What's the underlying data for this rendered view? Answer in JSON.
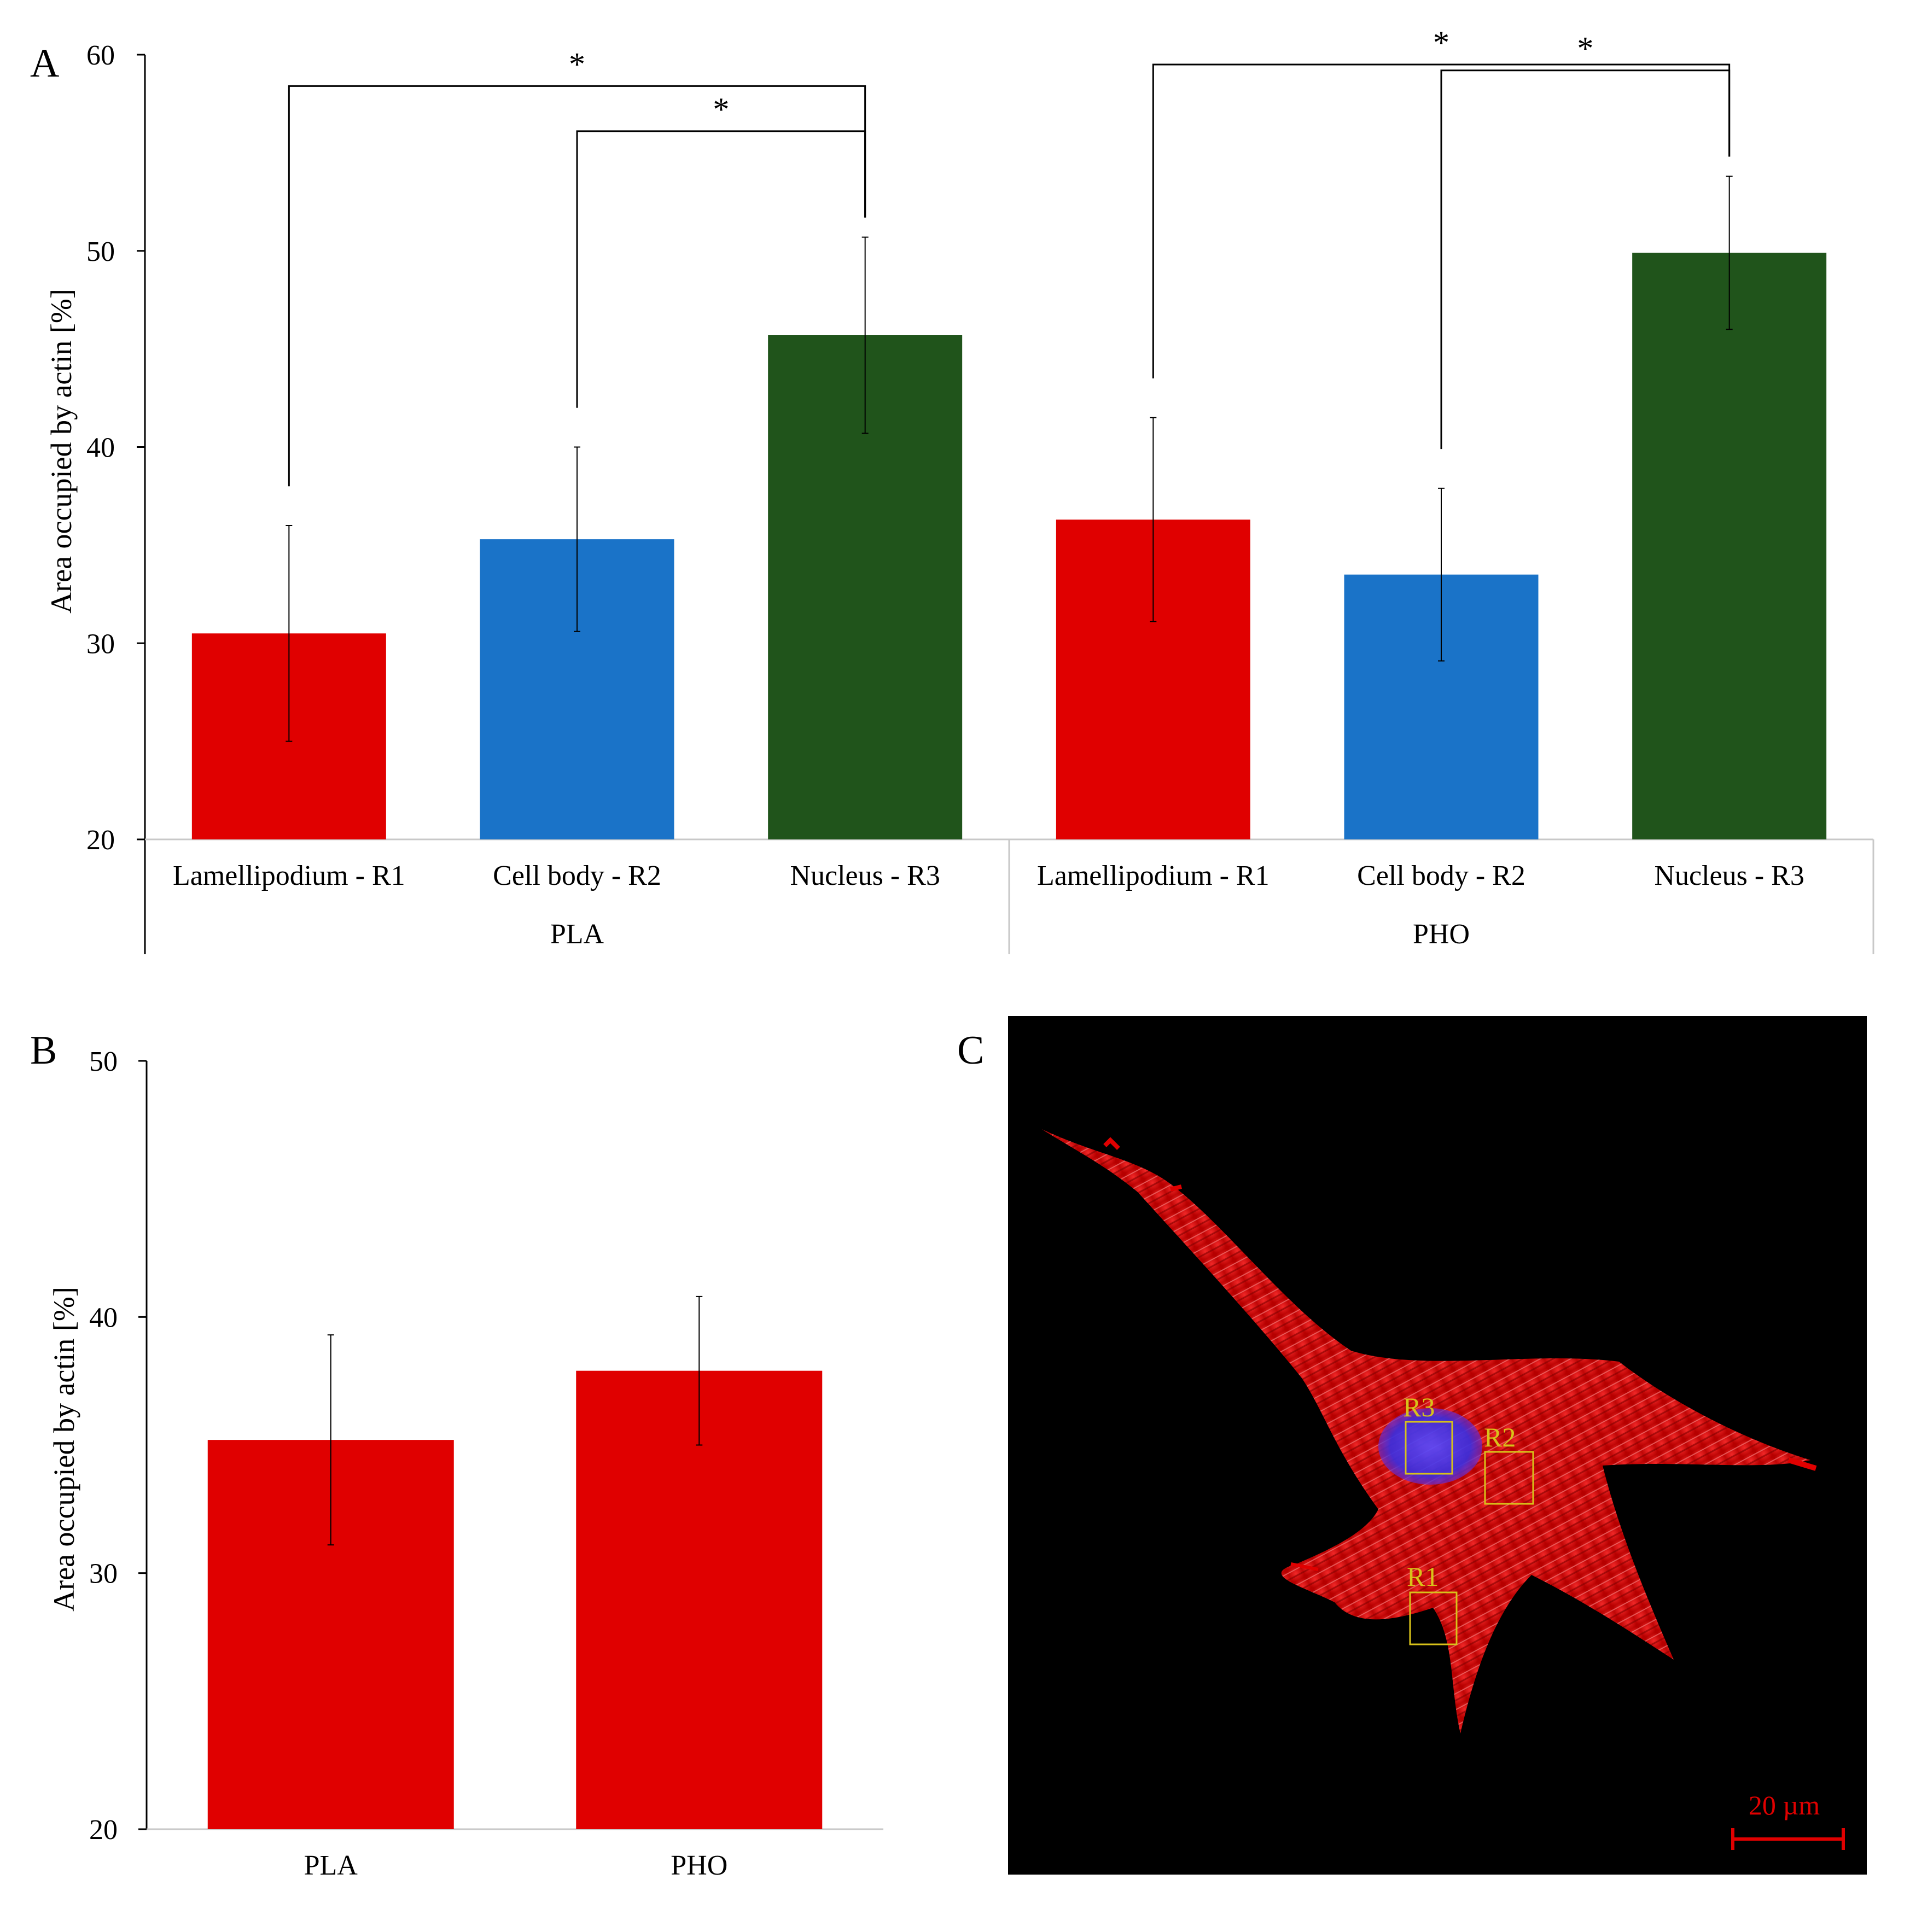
{
  "panel_labels": {
    "a": "A",
    "b": "B",
    "c": "C"
  },
  "colors": {
    "lamellipodium": "#e00000",
    "cell_body": "#1a73c8",
    "nucleus": "#20541b",
    "axis": "#000000",
    "roi": "#d8c21a",
    "scale_bar": "#e00000"
  },
  "chart_data": [
    {
      "id": "A",
      "type": "bar",
      "ylabel": "Area occupied by actin [%]",
      "ylim": [
        20,
        60
      ],
      "yticks": [
        "20",
        "30",
        "40",
        "50",
        "60"
      ],
      "groups": [
        "PLA",
        "PHO"
      ],
      "categories": [
        "Lamellipodium - R1",
        "Cell body - R2",
        "Nucleus - R3"
      ],
      "series": [
        {
          "group": "PLA",
          "values": [
            30.5,
            35.3,
            45.7
          ],
          "errors": [
            5.5,
            4.7,
            5.0
          ]
        },
        {
          "group": "PHO",
          "values": [
            36.3,
            33.5,
            49.9
          ],
          "errors": [
            5.2,
            4.4,
            3.9
          ]
        }
      ],
      "annotations": [
        {
          "group": "PLA",
          "from": "Lamellipodium - R1",
          "to": "Nucleus - R3",
          "label": "*"
        },
        {
          "group": "PLA",
          "from": "Cell body - R2",
          "to": "Nucleus - R3",
          "label": "*"
        },
        {
          "group": "PHO",
          "from": "Lamellipodium - R1",
          "to": "Nucleus - R3",
          "label": "*"
        },
        {
          "group": "PHO",
          "from": "Cell body - R2",
          "to": "Nucleus - R3",
          "label": "*"
        }
      ]
    },
    {
      "id": "B",
      "type": "bar",
      "ylabel": "Area occupied by actin [%]",
      "ylim": [
        20,
        50
      ],
      "yticks": [
        "20",
        "30",
        "40",
        "50"
      ],
      "categories": [
        "PLA",
        "PHO"
      ],
      "values": [
        35.2,
        37.9
      ],
      "errors": [
        4.1,
        2.9
      ]
    }
  ],
  "micrograph": {
    "regions": [
      "R1",
      "R2",
      "R3"
    ],
    "scale_bar_label": "20 µm"
  }
}
